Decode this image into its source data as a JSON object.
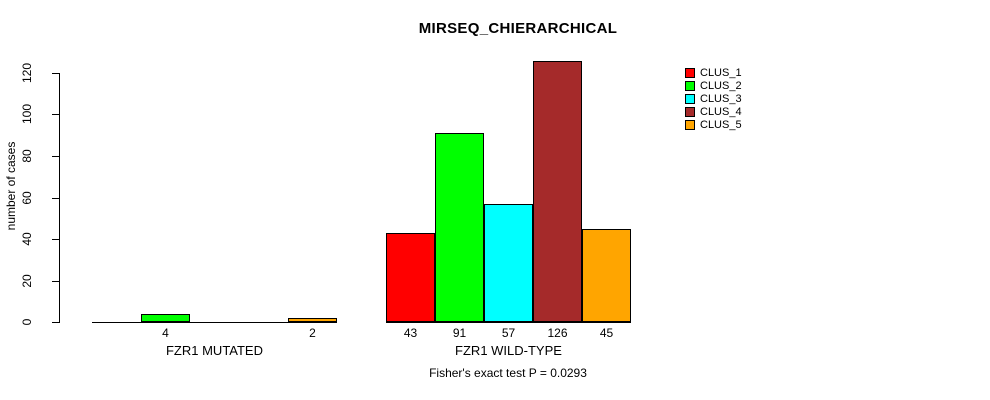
{
  "chart_data": {
    "type": "bar",
    "title": "MIRSEQ_CHIERARCHICAL",
    "ylabel": "number of cases",
    "xlabel": "",
    "annotation": "Fisher's exact test P = 0.0293",
    "ylim": [
      0,
      120
    ],
    "yticks": [
      0,
      20,
      40,
      60,
      80,
      100,
      120
    ],
    "grid": false,
    "legend_position": "top-right",
    "categories": [
      "FZR1 MUTATED",
      "FZR1 WILD-TYPE"
    ],
    "series": [
      {
        "name": "CLUS_1",
        "color": "#FF0000",
        "values": [
          0,
          43
        ]
      },
      {
        "name": "CLUS_2",
        "color": "#00FF00",
        "values": [
          4,
          91
        ]
      },
      {
        "name": "CLUS_3",
        "color": "#00FFFF",
        "values": [
          0,
          57
        ]
      },
      {
        "name": "CLUS_4",
        "color": "#A52A2A",
        "values": [
          0,
          126
        ]
      },
      {
        "name": "CLUS_5",
        "color": "#FFA500",
        "values": [
          2,
          45
        ]
      }
    ],
    "bar_value_labels": [
      [
        "",
        "4",
        "",
        "",
        "2"
      ],
      [
        "43",
        "91",
        "57",
        "126",
        "45"
      ]
    ]
  }
}
